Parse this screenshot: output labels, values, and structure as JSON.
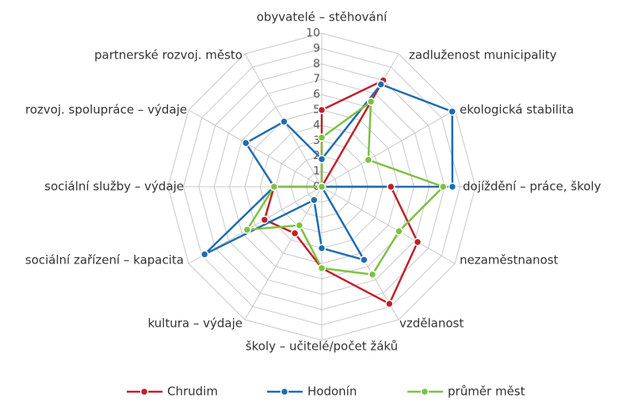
{
  "chart_data": {
    "type": "radar",
    "categories": [
      "obyvatelé – stěhování",
      "zadluženost municipality",
      "ekologická stabilita",
      "dojíždění – práce, školy",
      "nezaměstnanost",
      "vzdělanost",
      "školy – učitelé/počet žáků",
      "kultura – výdaje",
      "sociální zařízení – kapacita",
      "sociální služby – výdaje",
      "rozvoj. spolupráce – výdaje",
      "partnerské rozvoj. město"
    ],
    "series": [
      {
        "name": "Chrudim",
        "color": "#c0202a",
        "values": [
          5,
          8,
          0,
          4.5,
          7.2,
          8.8,
          5.3,
          3.5,
          4.3,
          3.1,
          0,
          0
        ]
      },
      {
        "name": "Hodonín",
        "color": "#1f6cb0",
        "values": [
          1.8,
          7.7,
          9.8,
          8.5,
          0,
          5.5,
          4,
          1,
          8.8,
          3.1,
          5.7,
          4.9
        ]
      },
      {
        "name": "průměr měst",
        "color": "#7cc142",
        "values": [
          3.2,
          6.4,
          3.5,
          7.9,
          5.8,
          6.6,
          5.3,
          2.9,
          5.6,
          3.1,
          0,
          0
        ]
      }
    ],
    "ylim": [
      0,
      10
    ],
    "yticks": [
      0,
      1,
      2,
      3,
      4,
      5,
      6,
      7,
      8,
      9,
      10
    ],
    "grid": true,
    "legend": "bottom"
  }
}
